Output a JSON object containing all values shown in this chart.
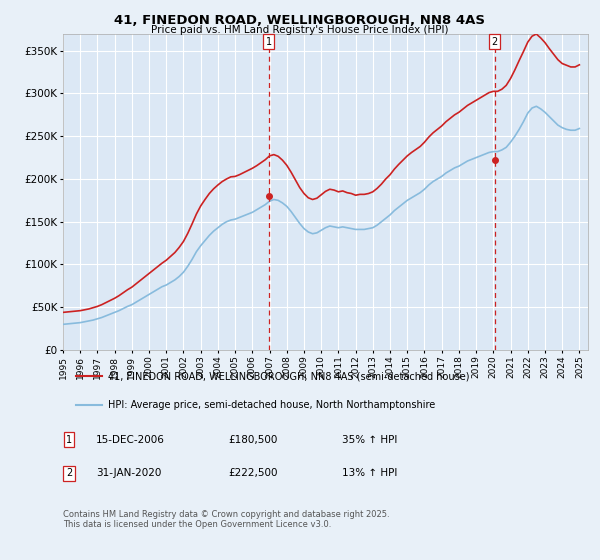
{
  "title": "41, FINEDON ROAD, WELLINGBOROUGH, NN8 4AS",
  "subtitle": "Price paid vs. HM Land Registry's House Price Index (HPI)",
  "background_color": "#e8f0f8",
  "plot_bg_color": "#dce8f5",
  "grid_color": "#ffffff",
  "ylim": [
    0,
    370000
  ],
  "yticks": [
    0,
    50000,
    100000,
    150000,
    200000,
    250000,
    300000,
    350000
  ],
  "ytick_labels": [
    "£0",
    "£50K",
    "£100K",
    "£150K",
    "£200K",
    "£250K",
    "£300K",
    "£350K"
  ],
  "xmin": 1995.0,
  "xmax": 2025.5,
  "xticks": [
    1995,
    1996,
    1997,
    1998,
    1999,
    2000,
    2001,
    2002,
    2003,
    2004,
    2005,
    2006,
    2007,
    2008,
    2009,
    2010,
    2011,
    2012,
    2013,
    2014,
    2015,
    2016,
    2017,
    2018,
    2019,
    2020,
    2021,
    2022,
    2023,
    2024,
    2025
  ],
  "line1_color": "#cc2222",
  "line2_color": "#88bbdd",
  "vline_color": "#cc2222",
  "marker_color": "#cc2222",
  "sale1_x": 2006.96,
  "sale1_y": 180500,
  "sale1_label": "1",
  "sale2_x": 2020.08,
  "sale2_y": 222500,
  "sale2_label": "2",
  "legend_line1": "41, FINEDON ROAD, WELLINGBOROUGH, NN8 4AS (semi-detached house)",
  "legend_line2": "HPI: Average price, semi-detached house, North Northamptonshire",
  "annotation1_label": "1",
  "annotation1_date": "15-DEC-2006",
  "annotation1_price": "£180,500",
  "annotation1_hpi": "35% ↑ HPI",
  "annotation2_label": "2",
  "annotation2_date": "31-JAN-2020",
  "annotation2_price": "£222,500",
  "annotation2_hpi": "13% ↑ HPI",
  "footer": "Contains HM Land Registry data © Crown copyright and database right 2025.\nThis data is licensed under the Open Government Licence v3.0.",
  "hpi_data_x": [
    1995.0,
    1995.25,
    1995.5,
    1995.75,
    1996.0,
    1996.25,
    1996.5,
    1996.75,
    1997.0,
    1997.25,
    1997.5,
    1997.75,
    1998.0,
    1998.25,
    1998.5,
    1998.75,
    1999.0,
    1999.25,
    1999.5,
    1999.75,
    2000.0,
    2000.25,
    2000.5,
    2000.75,
    2001.0,
    2001.25,
    2001.5,
    2001.75,
    2002.0,
    2002.25,
    2002.5,
    2002.75,
    2003.0,
    2003.25,
    2003.5,
    2003.75,
    2004.0,
    2004.25,
    2004.5,
    2004.75,
    2005.0,
    2005.25,
    2005.5,
    2005.75,
    2006.0,
    2006.25,
    2006.5,
    2006.75,
    2007.0,
    2007.25,
    2007.5,
    2007.75,
    2008.0,
    2008.25,
    2008.5,
    2008.75,
    2009.0,
    2009.25,
    2009.5,
    2009.75,
    2010.0,
    2010.25,
    2010.5,
    2010.75,
    2011.0,
    2011.25,
    2011.5,
    2011.75,
    2012.0,
    2012.25,
    2012.5,
    2012.75,
    2013.0,
    2013.25,
    2013.5,
    2013.75,
    2014.0,
    2014.25,
    2014.5,
    2014.75,
    2015.0,
    2015.25,
    2015.5,
    2015.75,
    2016.0,
    2016.25,
    2016.5,
    2016.75,
    2017.0,
    2017.25,
    2017.5,
    2017.75,
    2018.0,
    2018.25,
    2018.5,
    2018.75,
    2019.0,
    2019.25,
    2019.5,
    2019.75,
    2020.0,
    2020.25,
    2020.5,
    2020.75,
    2021.0,
    2021.25,
    2021.5,
    2021.75,
    2022.0,
    2022.25,
    2022.5,
    2022.75,
    2023.0,
    2023.25,
    2023.5,
    2023.75,
    2024.0,
    2024.25,
    2024.5,
    2024.75,
    2025.0
  ],
  "hpi_data_y": [
    30000,
    30500,
    31000,
    31500,
    32000,
    33000,
    34000,
    35000,
    36500,
    38000,
    40000,
    42000,
    44000,
    46000,
    48500,
    51000,
    53000,
    56000,
    59000,
    62000,
    65000,
    68000,
    71000,
    74000,
    76000,
    79000,
    82000,
    86000,
    91000,
    98000,
    106000,
    115000,
    122000,
    128000,
    134000,
    139000,
    143000,
    147000,
    150000,
    152000,
    153000,
    155000,
    157000,
    159000,
    161000,
    164000,
    167000,
    170000,
    174000,
    176000,
    175000,
    172000,
    168000,
    162000,
    155000,
    148000,
    142000,
    138000,
    136000,
    137000,
    140000,
    143000,
    145000,
    144000,
    143000,
    144000,
    143000,
    142000,
    141000,
    141000,
    141000,
    142000,
    143000,
    146000,
    150000,
    154000,
    158000,
    163000,
    167000,
    171000,
    175000,
    178000,
    181000,
    184000,
    188000,
    193000,
    197000,
    200000,
    203000,
    207000,
    210000,
    213000,
    215000,
    218000,
    221000,
    223000,
    225000,
    227000,
    229000,
    231000,
    232000,
    232000,
    234000,
    237000,
    243000,
    250000,
    258000,
    267000,
    277000,
    283000,
    285000,
    282000,
    278000,
    273000,
    268000,
    263000,
    260000,
    258000,
    257000,
    257000,
    259000
  ],
  "price_data_x": [
    1995.0,
    1995.25,
    1995.5,
    1995.75,
    1996.0,
    1996.25,
    1996.5,
    1996.75,
    1997.0,
    1997.25,
    1997.5,
    1997.75,
    1998.0,
    1998.25,
    1998.5,
    1998.75,
    1999.0,
    1999.25,
    1999.5,
    1999.75,
    2000.0,
    2000.25,
    2000.5,
    2000.75,
    2001.0,
    2001.25,
    2001.5,
    2001.75,
    2002.0,
    2002.25,
    2002.5,
    2002.75,
    2003.0,
    2003.25,
    2003.5,
    2003.75,
    2004.0,
    2004.25,
    2004.5,
    2004.75,
    2005.0,
    2005.25,
    2005.5,
    2005.75,
    2006.0,
    2006.25,
    2006.5,
    2006.75,
    2007.0,
    2007.25,
    2007.5,
    2007.75,
    2008.0,
    2008.25,
    2008.5,
    2008.75,
    2009.0,
    2009.25,
    2009.5,
    2009.75,
    2010.0,
    2010.25,
    2010.5,
    2010.75,
    2011.0,
    2011.25,
    2011.5,
    2011.75,
    2012.0,
    2012.25,
    2012.5,
    2012.75,
    2013.0,
    2013.25,
    2013.5,
    2013.75,
    2014.0,
    2014.25,
    2014.5,
    2014.75,
    2015.0,
    2015.25,
    2015.5,
    2015.75,
    2016.0,
    2016.25,
    2016.5,
    2016.75,
    2017.0,
    2017.25,
    2017.5,
    2017.75,
    2018.0,
    2018.25,
    2018.5,
    2018.75,
    2019.0,
    2019.25,
    2019.5,
    2019.75,
    2020.0,
    2020.25,
    2020.5,
    2020.75,
    2021.0,
    2021.25,
    2021.5,
    2021.75,
    2022.0,
    2022.25,
    2022.5,
    2022.75,
    2023.0,
    2023.25,
    2023.5,
    2023.75,
    2024.0,
    2024.25,
    2024.5,
    2024.75,
    2025.0
  ],
  "price_data_y": [
    44000,
    44500,
    45000,
    45500,
    46000,
    47000,
    48000,
    49500,
    51000,
    53000,
    55500,
    58000,
    60500,
    63500,
    67000,
    70500,
    73500,
    77500,
    81500,
    85500,
    89500,
    93500,
    97500,
    101500,
    105000,
    109500,
    114000,
    120000,
    127000,
    136500,
    147500,
    159000,
    168500,
    176000,
    183000,
    188500,
    193000,
    197000,
    200000,
    202500,
    203000,
    205000,
    207500,
    210000,
    212500,
    215500,
    219000,
    222500,
    227000,
    228500,
    226500,
    222000,
    216000,
    208000,
    199000,
    190000,
    183000,
    178000,
    176000,
    177500,
    181500,
    185500,
    188000,
    187000,
    185000,
    186000,
    184000,
    183000,
    181000,
    182000,
    182000,
    183000,
    185000,
    189000,
    194000,
    200000,
    205000,
    211500,
    217000,
    222000,
    227000,
    231000,
    234500,
    238000,
    243000,
    249000,
    254000,
    258000,
    262000,
    267000,
    271000,
    275000,
    278000,
    282000,
    286000,
    289000,
    292000,
    295000,
    298000,
    301000,
    302500,
    302500,
    305000,
    309500,
    317500,
    327500,
    338500,
    349000,
    360000,
    367000,
    369500,
    365000,
    359500,
    352500,
    346000,
    339500,
    335000,
    333000,
    331000,
    331000,
    333500
  ]
}
